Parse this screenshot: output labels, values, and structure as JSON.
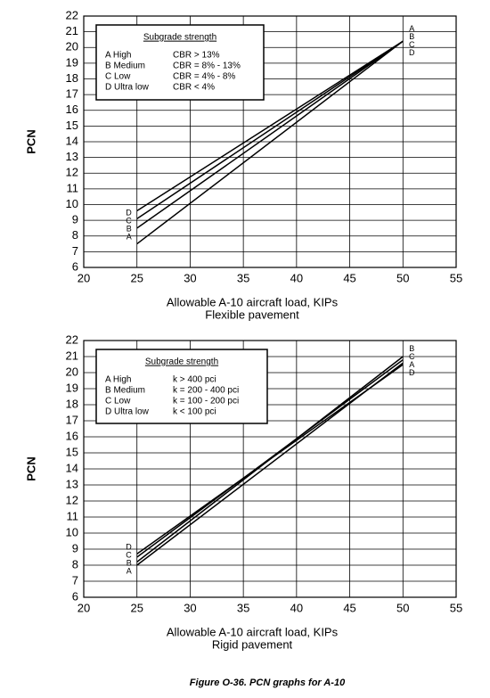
{
  "chart_data": [
    {
      "type": "line",
      "xlabel": "Allowable A-10 aircraft load, KIPs",
      "subtitle": "Flexible pavement",
      "ylabel": "PCN",
      "legend_title": "Subgrade strength",
      "x": [
        25,
        50
      ],
      "xlim": [
        20,
        55
      ],
      "xticks": [
        20,
        25,
        30,
        35,
        40,
        45,
        50,
        55
      ],
      "ylim": [
        6,
        22
      ],
      "yticks": [
        6,
        7,
        8,
        9,
        10,
        11,
        12,
        13,
        14,
        15,
        16,
        17,
        18,
        19,
        20,
        21,
        22
      ],
      "grid": true,
      "series": [
        {
          "name": "A  High",
          "criterion": "CBR > 13%",
          "label": "A",
          "color": "#000000",
          "values": [
            7.5,
            20.4
          ]
        },
        {
          "name": "B Medium",
          "criterion": "CBR = 8% - 13%",
          "label": "B",
          "color": "#000000",
          "values": [
            8.5,
            20.4
          ]
        },
        {
          "name": "C Low",
          "criterion": "CBR = 4% - 8%",
          "label": "C",
          "color": "#000000",
          "values": [
            9.1,
            20.4
          ]
        },
        {
          "name": "D Ultra low",
          "criterion": "CBR < 4%",
          "label": "D",
          "color": "#000000",
          "values": [
            9.6,
            20.4
          ]
        }
      ]
    },
    {
      "type": "line",
      "xlabel": "Allowable A-10 aircraft load, KIPs",
      "subtitle": "Rigid pavement",
      "ylabel": "PCN",
      "legend_title": "Subgrade strength",
      "x": [
        25,
        50
      ],
      "xlim": [
        20,
        55
      ],
      "xticks": [
        20,
        25,
        30,
        35,
        40,
        45,
        50,
        55
      ],
      "ylim": [
        6,
        22
      ],
      "yticks": [
        6,
        7,
        8,
        9,
        10,
        11,
        12,
        13,
        14,
        15,
        16,
        17,
        18,
        19,
        20,
        21,
        22
      ],
      "grid": true,
      "series": [
        {
          "name": "A  High",
          "criterion": "k > 400 pci",
          "label": "A",
          "color": "#000000",
          "values": [
            8.0,
            20.6
          ]
        },
        {
          "name": "B Medium",
          "criterion": "k = 200 - 400 pci",
          "label": "B",
          "color": "#000000",
          "values": [
            8.2,
            21.0
          ]
        },
        {
          "name": "C Low",
          "criterion": "k = 100 - 200 pci",
          "label": "C",
          "color": "#000000",
          "values": [
            8.5,
            20.8
          ]
        },
        {
          "name": "D Ultra low",
          "criterion": "k < 100 pci",
          "label": "D",
          "color": "#000000",
          "values": [
            8.7,
            20.5
          ]
        }
      ]
    }
  ],
  "figure_caption": "Figure O-36.  PCN graphs for A-10"
}
